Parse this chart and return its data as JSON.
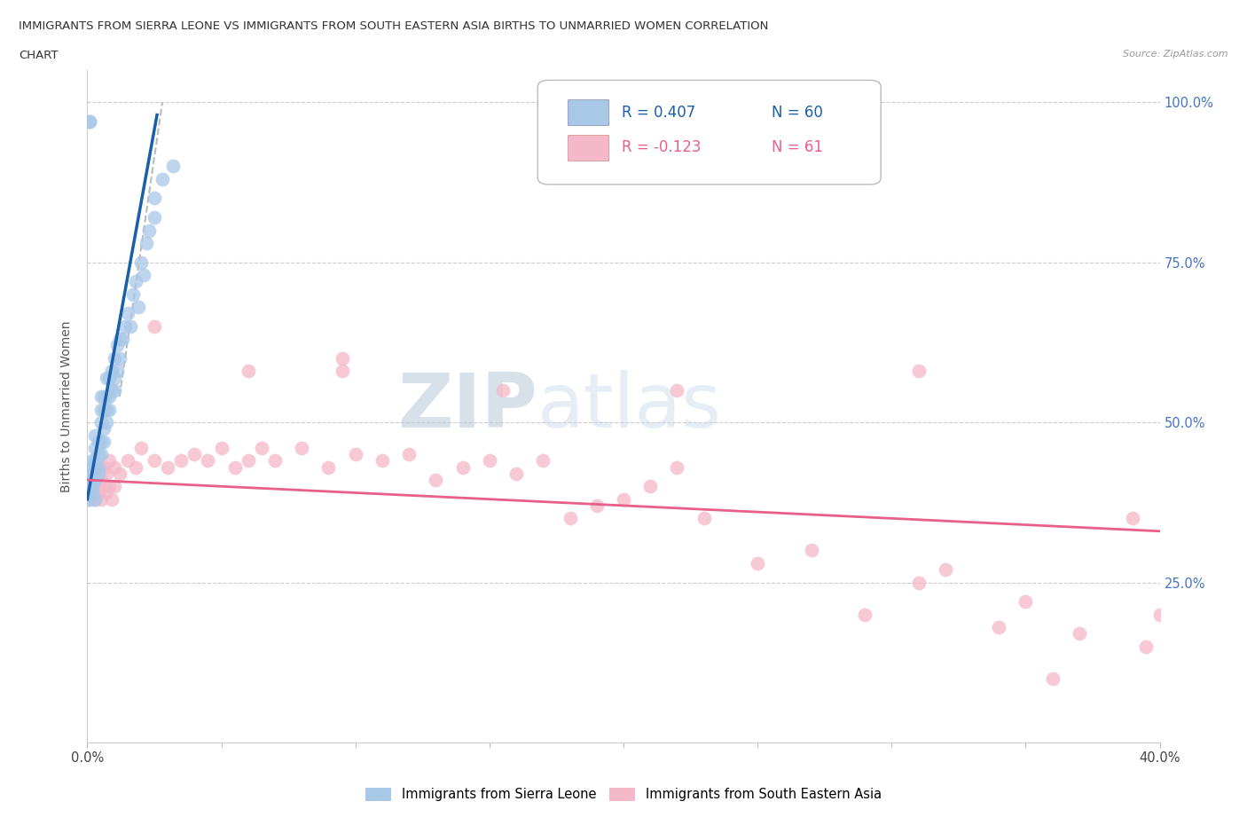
{
  "title_line1": "IMMIGRANTS FROM SIERRA LEONE VS IMMIGRANTS FROM SOUTH EASTERN ASIA BIRTHS TO UNMARRIED WOMEN CORRELATION",
  "title_line2": "CHART",
  "source": "Source: ZipAtlas.com",
  "ylabel": "Births to Unmarried Women",
  "legend_r1": "R = 0.407",
  "legend_n1": "N = 60",
  "legend_r2": "R = -0.123",
  "legend_n2": "N = 61",
  "color_blue": "#a8c8e8",
  "color_pink": "#f4b8c8",
  "color_blue_line": "#1a5fa8",
  "color_pink_line": "#e8608a",
  "color_trendline_dashed": "#bbbbbb",
  "watermark_zip": "ZIP",
  "watermark_atlas": "atlas",
  "xlim": [
    0.0,
    0.4
  ],
  "ylim": [
    0.0,
    1.05
  ],
  "blue_scatter_x": [
    0.0005,
    0.001,
    0.001,
    0.001,
    0.001,
    0.002,
    0.002,
    0.002,
    0.002,
    0.002,
    0.003,
    0.003,
    0.003,
    0.003,
    0.003,
    0.003,
    0.004,
    0.004,
    0.004,
    0.004,
    0.005,
    0.005,
    0.005,
    0.005,
    0.005,
    0.006,
    0.006,
    0.006,
    0.006,
    0.007,
    0.007,
    0.007,
    0.007,
    0.008,
    0.008,
    0.008,
    0.009,
    0.009,
    0.01,
    0.01,
    0.01,
    0.011,
    0.011,
    0.012,
    0.012,
    0.013,
    0.014,
    0.015,
    0.016,
    0.017,
    0.018,
    0.019,
    0.02,
    0.021,
    0.022,
    0.023,
    0.025,
    0.025,
    0.028,
    0.032
  ],
  "blue_scatter_y": [
    0.38,
    0.97,
    0.97,
    0.4,
    0.41,
    0.39,
    0.42,
    0.43,
    0.44,
    0.4,
    0.38,
    0.41,
    0.43,
    0.44,
    0.46,
    0.48,
    0.42,
    0.43,
    0.45,
    0.47,
    0.45,
    0.47,
    0.5,
    0.52,
    0.54,
    0.47,
    0.49,
    0.52,
    0.54,
    0.5,
    0.52,
    0.54,
    0.57,
    0.52,
    0.54,
    0.57,
    0.55,
    0.58,
    0.55,
    0.57,
    0.6,
    0.58,
    0.62,
    0.6,
    0.63,
    0.63,
    0.65,
    0.67,
    0.65,
    0.7,
    0.72,
    0.68,
    0.75,
    0.73,
    0.78,
    0.8,
    0.82,
    0.85,
    0.88,
    0.9
  ],
  "pink_scatter_x": [
    0.001,
    0.001,
    0.002,
    0.002,
    0.003,
    0.003,
    0.004,
    0.004,
    0.005,
    0.005,
    0.006,
    0.006,
    0.007,
    0.007,
    0.008,
    0.008,
    0.009,
    0.01,
    0.01,
    0.012,
    0.015,
    0.018,
    0.02,
    0.025,
    0.03,
    0.035,
    0.04,
    0.045,
    0.05,
    0.055,
    0.06,
    0.065,
    0.07,
    0.08,
    0.09,
    0.1,
    0.11,
    0.12,
    0.13,
    0.14,
    0.15,
    0.16,
    0.17,
    0.18,
    0.19,
    0.2,
    0.21,
    0.22,
    0.23,
    0.25,
    0.27,
    0.29,
    0.31,
    0.32,
    0.34,
    0.35,
    0.37,
    0.39,
    0.395,
    0.4,
    0.36
  ],
  "pink_scatter_y": [
    0.38,
    0.4,
    0.39,
    0.42,
    0.38,
    0.41,
    0.39,
    0.43,
    0.38,
    0.41,
    0.4,
    0.43,
    0.39,
    0.42,
    0.4,
    0.44,
    0.38,
    0.4,
    0.43,
    0.42,
    0.44,
    0.43,
    0.46,
    0.44,
    0.43,
    0.44,
    0.45,
    0.44,
    0.46,
    0.43,
    0.44,
    0.46,
    0.44,
    0.46,
    0.43,
    0.45,
    0.44,
    0.45,
    0.41,
    0.43,
    0.44,
    0.42,
    0.44,
    0.35,
    0.37,
    0.38,
    0.4,
    0.43,
    0.35,
    0.28,
    0.3,
    0.2,
    0.25,
    0.27,
    0.18,
    0.22,
    0.17,
    0.35,
    0.15,
    0.2,
    0.1
  ],
  "pink_outlier_x": [
    0.025,
    0.06,
    0.095,
    0.095,
    0.155,
    0.22,
    0.31
  ],
  "pink_outlier_y": [
    0.65,
    0.58,
    0.58,
    0.6,
    0.55,
    0.55,
    0.58
  ],
  "blue_trend_x": [
    0.0,
    0.026
  ],
  "blue_trend_y": [
    0.38,
    0.98
  ],
  "pink_trend_x": [
    0.0,
    0.4
  ],
  "pink_trend_y": [
    0.41,
    0.33
  ],
  "dashed_trend_x": [
    0.012,
    0.028
  ],
  "dashed_trend_y": [
    0.54,
    1.0
  ]
}
